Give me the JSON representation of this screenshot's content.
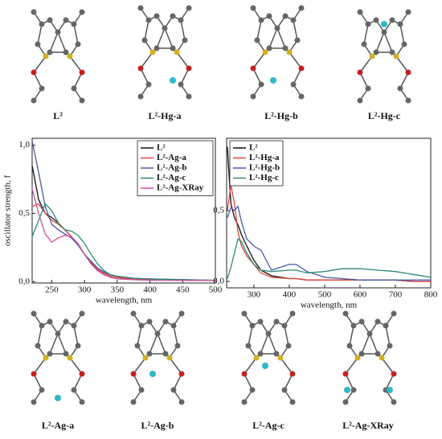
{
  "molecules": {
    "top": [
      "L²",
      "L²-Hg-a",
      "L²-Hg-b",
      "L²-Hg-c"
    ],
    "bottom": [
      "L²-Ag-a",
      "L²-Ag-b",
      "L²-Ag-c",
      "L²-Ag-XRay"
    ]
  },
  "chart_data": [
    {
      "type": "line",
      "xlabel": "wavelength, nm",
      "ylabel": "oscillator strength, f",
      "legend": "upper right",
      "x": [
        220,
        230,
        240,
        250,
        260,
        270,
        280,
        290,
        300,
        310,
        320,
        330,
        340,
        350,
        375,
        400,
        450,
        500
      ],
      "xlim": [
        220,
        500
      ],
      "xticks": [
        250,
        300,
        350,
        400,
        450,
        500
      ],
      "ylim": [
        -0.01,
        1.05
      ],
      "yticks": [
        {
          "value": 0,
          "label": "0,0"
        },
        {
          "value": 0.5,
          "label": "0,5"
        },
        {
          "value": 1,
          "label": "1,0"
        }
      ],
      "series": [
        {
          "name": "L²",
          "color": "#111111",
          "values": [
            0.85,
            0.6,
            0.5,
            0.47,
            0.43,
            0.38,
            0.33,
            0.27,
            0.2,
            0.14,
            0.09,
            0.06,
            0.04,
            0.03,
            0.02,
            0.015,
            0.01,
            0.01
          ]
        },
        {
          "name": "L²-Ag-a",
          "color": "#e0443c",
          "values": [
            0.55,
            0.57,
            0.5,
            0.45,
            0.42,
            0.38,
            0.33,
            0.27,
            0.2,
            0.14,
            0.09,
            0.06,
            0.04,
            0.03,
            0.02,
            0.015,
            0.01,
            0.01
          ]
        },
        {
          "name": "L²-Ag-b",
          "color": "#4a5aa8",
          "values": [
            1.03,
            0.8,
            0.55,
            0.42,
            0.38,
            0.35,
            0.32,
            0.27,
            0.2,
            0.15,
            0.1,
            0.07,
            0.05,
            0.04,
            0.025,
            0.02,
            0.015,
            0.01
          ]
        },
        {
          "name": "L²-Ag-c",
          "color": "#2a8a7a",
          "values": [
            0.33,
            0.45,
            0.57,
            0.52,
            0.43,
            0.38,
            0.37,
            0.34,
            0.28,
            0.2,
            0.13,
            0.08,
            0.05,
            0.04,
            0.025,
            0.02,
            0.015,
            0.01
          ]
        },
        {
          "name": "L²-Ag-XRay",
          "color": "#d050a0",
          "values": [
            0.68,
            0.5,
            0.35,
            0.29,
            0.32,
            0.34,
            0.33,
            0.28,
            0.2,
            0.13,
            0.08,
            0.05,
            0.03,
            0.02,
            0.015,
            0.01,
            0.01,
            0.01
          ]
        }
      ]
    },
    {
      "type": "line",
      "xlabel": "wavelength, nm",
      "legend": "upper left",
      "x": [
        225,
        235,
        245,
        255,
        265,
        280,
        300,
        320,
        350,
        400,
        420,
        450,
        500,
        550,
        600,
        650,
        700,
        750,
        800
      ],
      "xlim": [
        223,
        800
      ],
      "xticks": [
        300,
        400,
        500,
        600,
        700,
        800
      ],
      "ylim": [
        -0.045,
        1.01
      ],
      "yticks": [
        {
          "value": 0,
          "label": "0,0"
        },
        {
          "value": 0.5,
          "label": "0,5"
        }
      ],
      "series": [
        {
          "name": "L²",
          "color": "#111111",
          "values": [
            0.95,
            0.55,
            0.45,
            0.4,
            0.33,
            0.25,
            0.15,
            0.08,
            0.04,
            0.02,
            0.02,
            0.01,
            0.01,
            0.01,
            0.01,
            0.01,
            0.01,
            0,
            0
          ]
        },
        {
          "name": "L²-Hg-a",
          "color": "#e0443c",
          "values": [
            0.5,
            0.68,
            0.55,
            0.35,
            0.25,
            0.18,
            0.12,
            0.06,
            0.03,
            0.02,
            0.02,
            0.01,
            0.01,
            0.01,
            0.01,
            0.01,
            0.01,
            0,
            0
          ]
        },
        {
          "name": "L²-Hg-b",
          "color": "#4a5aa8",
          "values": [
            0.45,
            0.52,
            0.5,
            0.53,
            0.42,
            0.3,
            0.25,
            0.22,
            0.08,
            0.12,
            0.12,
            0.07,
            0.03,
            0.02,
            0.01,
            0.01,
            0.01,
            0.01,
            0.01
          ]
        },
        {
          "name": "L²-Hg-c",
          "color": "#2a8a7a",
          "values": [
            0.02,
            0.1,
            0.2,
            0.3,
            0.28,
            0.2,
            0.12,
            0.08,
            0.07,
            0.08,
            0.08,
            0.06,
            0.07,
            0.09,
            0.09,
            0.08,
            0.07,
            0.05,
            0.03
          ]
        }
      ]
    }
  ]
}
